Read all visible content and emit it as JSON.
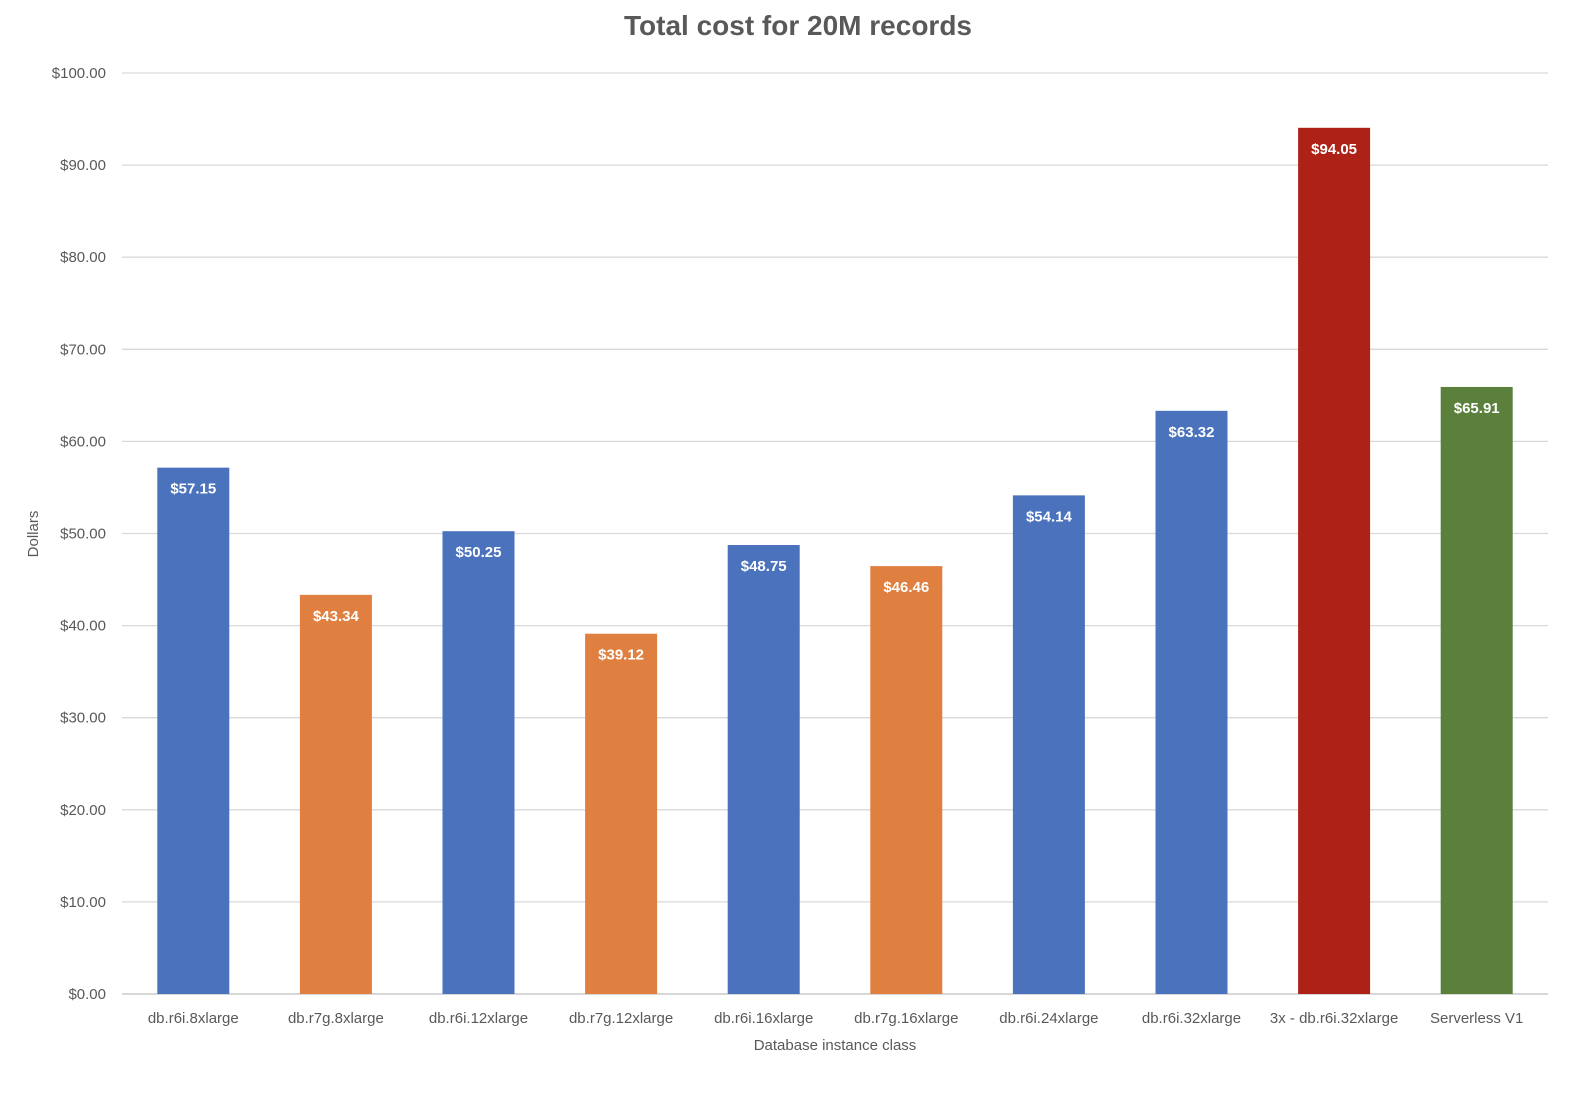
{
  "chart_data": {
    "type": "bar",
    "title": "Total cost for 20M records",
    "xlabel": "Database instance class",
    "ylabel": "Dollars",
    "ylim": [
      0,
      100
    ],
    "yticks": [
      "$0.00",
      "$10.00",
      "$20.00",
      "$30.00",
      "$40.00",
      "$50.00",
      "$60.00",
      "$70.00",
      "$80.00",
      "$90.00",
      "$100.00"
    ],
    "ytick_values": [
      0,
      10,
      20,
      30,
      40,
      50,
      60,
      70,
      80,
      90,
      100
    ],
    "grid": true,
    "legend": "none",
    "categories": [
      "db.r6i.8xlarge",
      "db.r7g.8xlarge",
      "db.r6i.12xlarge",
      "db.r7g.12xlarge",
      "db.r6i.16xlarge",
      "db.r7g.16xlarge",
      "db.r6i.24xlarge",
      "db.r6i.32xlarge",
      "3x - db.r6i.32xlarge",
      "Serverless V1"
    ],
    "values": [
      57.15,
      43.34,
      50.25,
      39.12,
      48.75,
      46.46,
      54.14,
      63.32,
      94.05,
      65.91
    ],
    "data_labels": [
      "$57.15",
      "$43.34",
      "$50.25",
      "$39.12",
      "$48.75",
      "$46.46",
      "$54.14",
      "$63.32",
      "$94.05",
      "$65.91"
    ],
    "colors": [
      "#4a72bd",
      "#df8041",
      "#4a72bd",
      "#df8041",
      "#4a72bd",
      "#df8041",
      "#4a72bd",
      "#4a72bd",
      "#ad2117",
      "#5a803b"
    ],
    "gridline_color": "#d9d9d9",
    "axis_color": "#bfbfbf"
  }
}
